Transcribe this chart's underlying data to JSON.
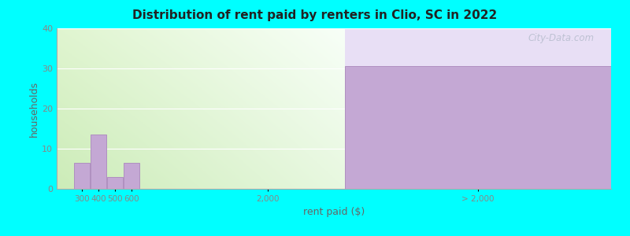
{
  "title": "Distribution of rent paid by renters in Clio, SC in 2022",
  "xlabel": "rent paid ($)",
  "ylabel": "households",
  "background_color": "#00FFFF",
  "bar_color": "#c4a8d4",
  "bar_edge_color": "#b090c0",
  "yticks": [
    0,
    10,
    20,
    30,
    40
  ],
  "ylim": [
    0,
    40
  ],
  "bar_values": [
    6.5,
    13.5,
    3.0,
    6.5
  ],
  "bar_labels": [
    "300",
    "400",
    "500",
    "600"
  ],
  "special_bar_value": 30.5,
  "special_bar_label": "> 2,000",
  "mid_tick_label": "2,000",
  "watermark": "City-Data.com",
  "left_bg_color_top": "#f0f8ee",
  "left_bg_color_bottom": "#d8eecc",
  "right_bg_color": "#e8dff5",
  "grid_color": "#ffffff",
  "tick_color": "#888888",
  "spine_color": "#aaaaaa",
  "title_color": "#222222",
  "label_color": "#666666"
}
